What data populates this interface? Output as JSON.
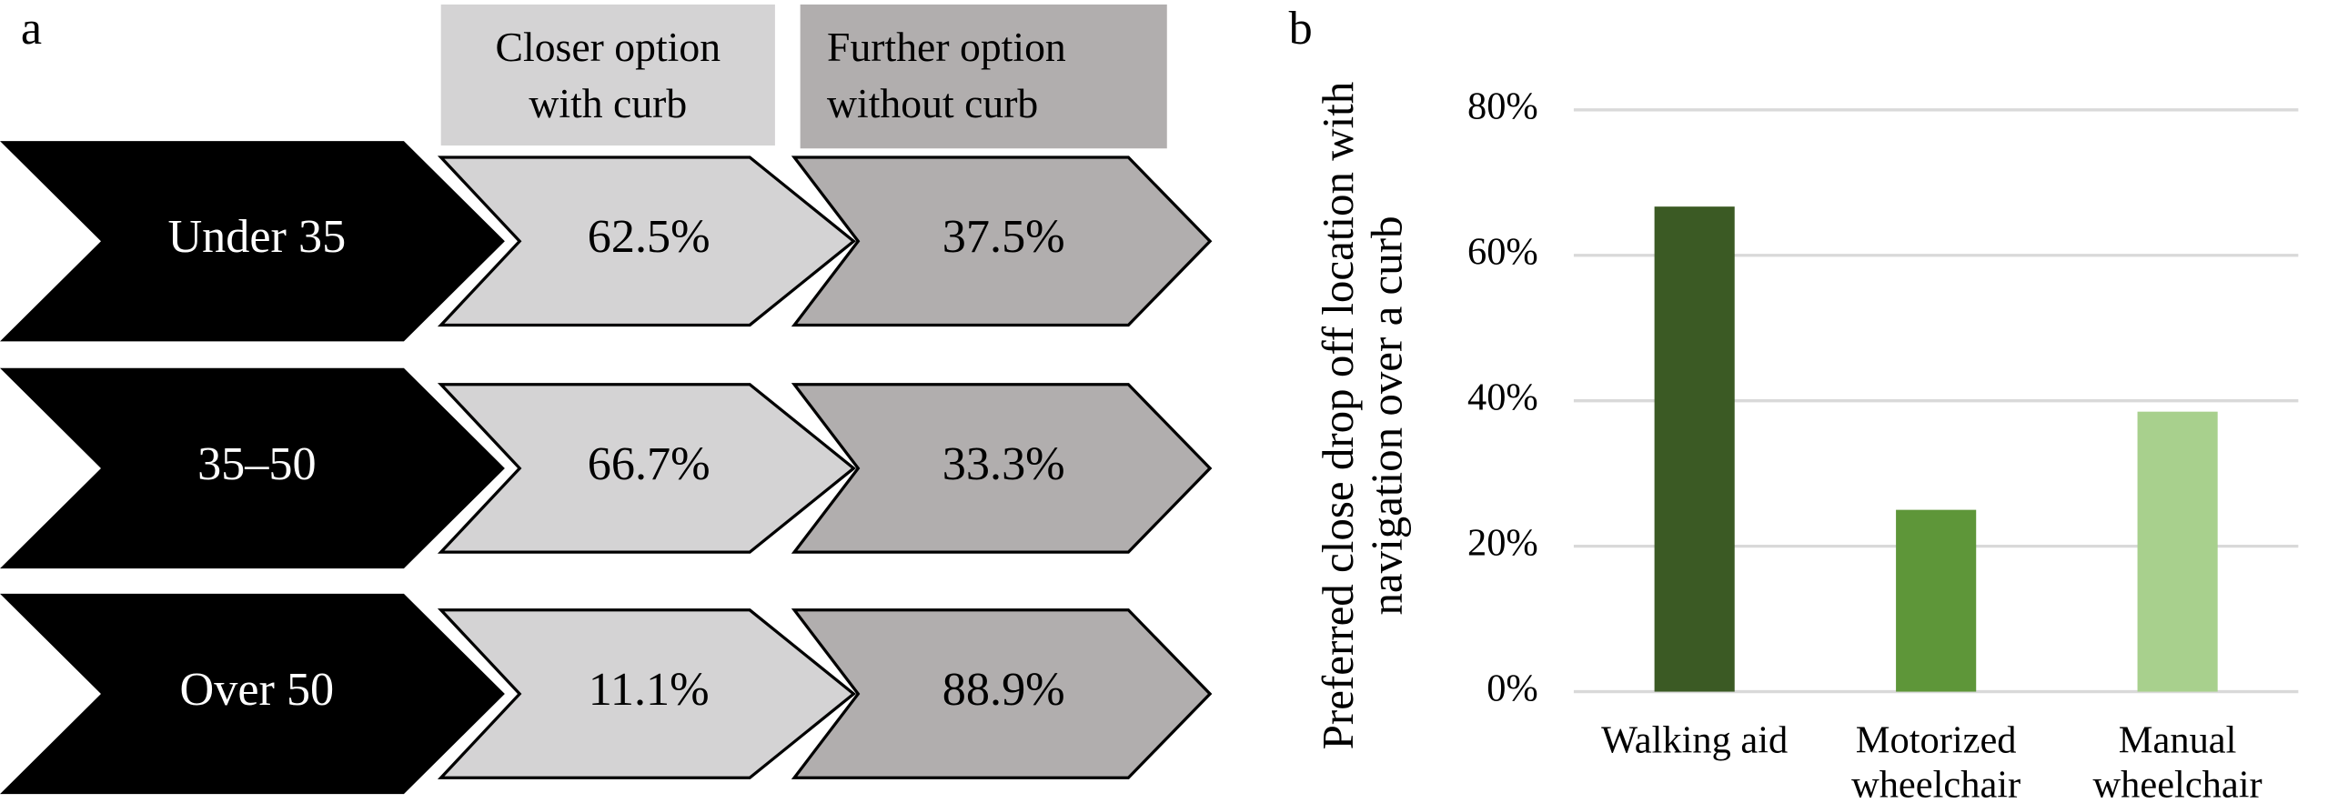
{
  "panel_a": {
    "label": "a",
    "headers": [
      "Closer option with curb",
      "Further option without curb"
    ],
    "rows": [
      [
        "Under 35",
        "62.5%",
        "37.5%"
      ],
      [
        "35–50",
        "66.7%",
        "33.3%"
      ],
      [
        "Over 50",
        "11.1%",
        "88.9%"
      ]
    ]
  },
  "chart_data": {
    "type": "bar",
    "panel_label": "b",
    "y_label": "Preferred close drop off location with navigation over a curb",
    "categories": [
      "Walking aid",
      "Motorized wheelchair",
      "Manual wheelchair"
    ],
    "values": [
      66.7,
      25,
      38.5
    ],
    "colors": [
      "#3b5a24",
      "#5e9639",
      "#a8d08d"
    ],
    "ylim": [
      0,
      80
    ],
    "yticks": [
      {
        "value": 0,
        "label": "0%"
      },
      {
        "value": 20,
        "label": "20%"
      },
      {
        "value": 40,
        "label": "40%"
      },
      {
        "value": 60,
        "label": "60%"
      },
      {
        "value": 80,
        "label": "80%"
      }
    ],
    "grid": true
  }
}
